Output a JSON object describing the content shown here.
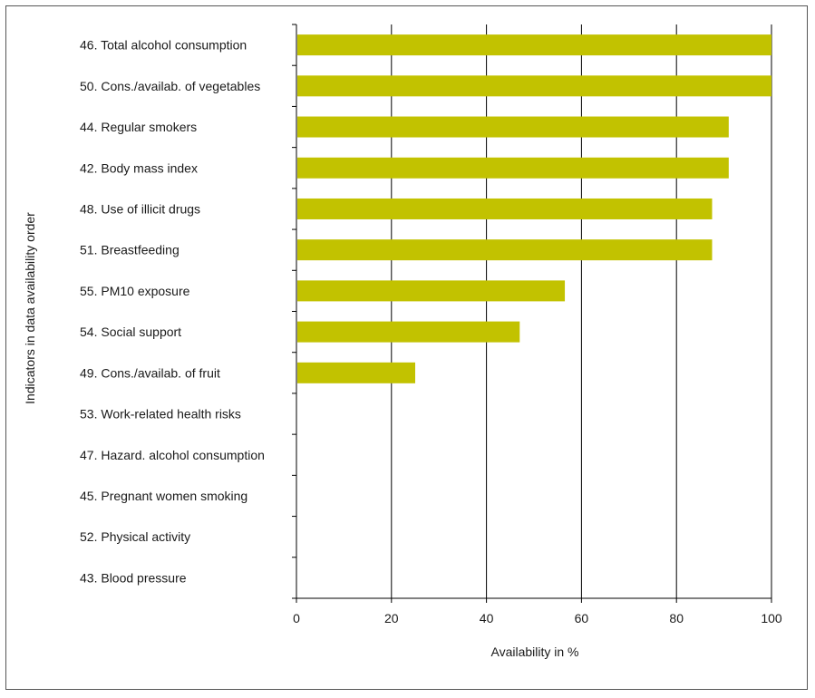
{
  "chart_data": {
    "type": "bar",
    "orientation": "horizontal",
    "categories": [
      "46. Total alcohol consumption",
      "50. Cons./availab. of vegetables",
      "44. Regular smokers",
      "42. Body mass index",
      "48. Use of illicit drugs",
      "51. Breastfeeding",
      "55. PM10 exposure",
      "54. Social support",
      "49. Cons./availab. of fruit",
      "53. Work-related health risks",
      "47. Hazard. alcohol consumption",
      "45. Pregnant women smoking",
      "52. Physical activity",
      "43. Blood pressure"
    ],
    "values": [
      100,
      100,
      91,
      91,
      87.5,
      87.5,
      56.5,
      47,
      25,
      0,
      0,
      0,
      0,
      0
    ],
    "xlabel": "Availability in %",
    "ylabel": "Indicators in data availability order",
    "xlim": [
      0,
      100
    ],
    "xticks": [
      "0",
      "20",
      "40",
      "60",
      "80",
      "100"
    ],
    "grid": "vertical",
    "bar_color": "#c2c200"
  }
}
